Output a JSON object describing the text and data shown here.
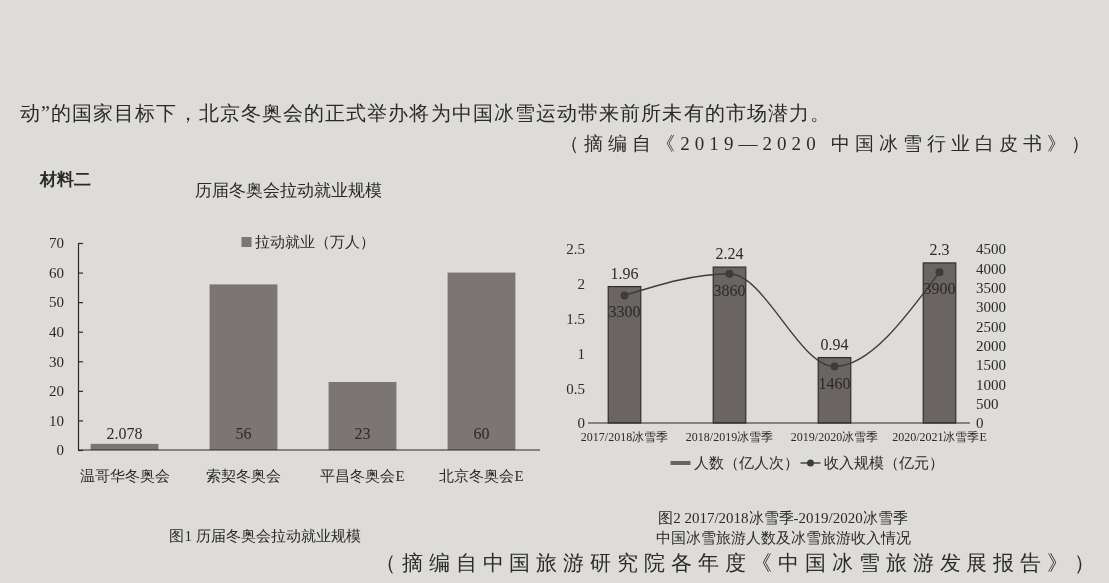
{
  "chart_data": [
    {
      "type": "bar",
      "title": "历届冬奥会拉动就业规模",
      "categories": [
        "温哥华冬奥会",
        "索契冬奥会",
        "平昌冬奥会E",
        "北京冬奥会E"
      ],
      "series": [
        {
          "name": "拉动就业（万人）",
          "color": "#7b7674",
          "values": [
            2.078,
            56,
            23,
            60
          ]
        }
      ],
      "ylim": [
        0,
        70
      ],
      "yticks": [
        0,
        10,
        20,
        30,
        40,
        50,
        60,
        70
      ],
      "data_labels": true,
      "legend": "top",
      "annotations": [
        "材料二",
        "动”的国家目标下，北京冬奥会的正式举办将为中国冰雪运动带来前所未有的市场潜力。",
        "（摘编自《2019—2020 中国冰雪行业白皮书》）",
        "图1 历届冬奥会拉动就业规模"
      ]
    },
    {
      "type": "bar",
      "categories": [
        "2017/2018冰雪季",
        "2018/2019冰雪季",
        "2019/2020冰雪季",
        "2020/2021冰雪季E"
      ],
      "series": [
        {
          "name": "人数（亿人次）",
          "color": "#6a6462",
          "values": [
            1.96,
            2.24,
            0.94,
            2.3
          ]
        },
        {
          "name": "收入规模（亿元）",
          "type": "line",
          "axis": "y2",
          "color": "#3c3c3c",
          "marker": "circle",
          "values": [
            3300,
            3860,
            1460,
            3900
          ]
        }
      ],
      "ylim": [
        0,
        2.5
      ],
      "yticks": [
        0,
        0.5,
        1,
        1.5,
        2,
        2.5
      ],
      "y2lim": [
        0,
        4500
      ],
      "y2ticks": [
        0,
        500,
        1000,
        1500,
        2000,
        2500,
        3000,
        3500,
        4000,
        4500
      ],
      "data_labels": true,
      "legend": "bottom",
      "annotations": [
        "图2 2017/2018冰雪季-2019/2020冰雪季",
        "中国冰雪旅游人数及冰雪旅游收入情况",
        "（摘编自中国旅游研究院各年度《中国冰雪旅游发展报告》）"
      ]
    }
  ]
}
